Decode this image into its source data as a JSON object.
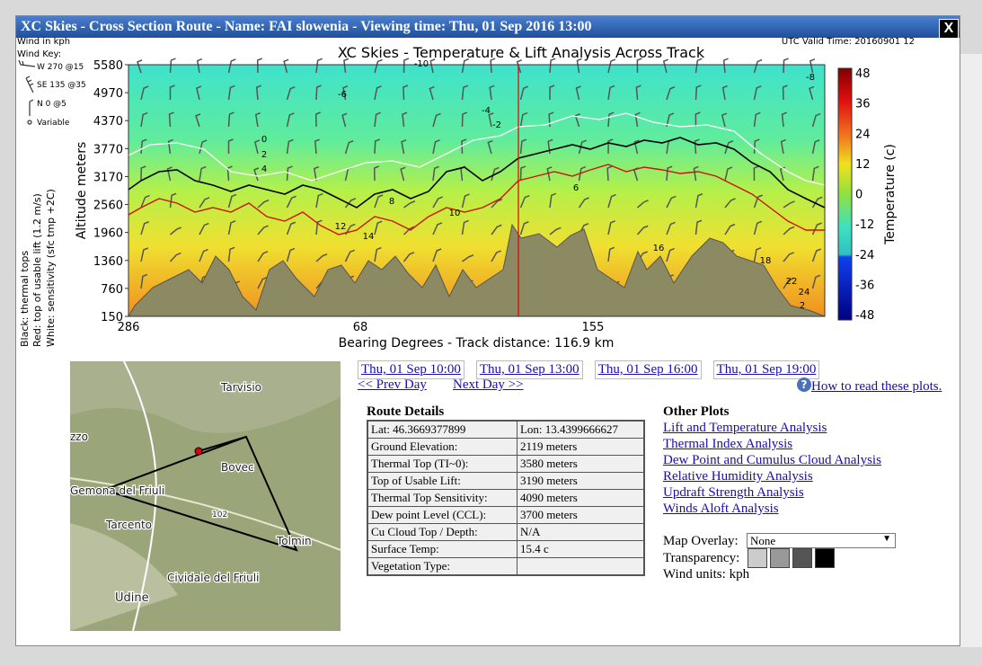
{
  "window": {
    "title": "XC Skies - Cross Section Route - Name: FAI slowenia - Viewing time: Thu, 01 Sep 2016 13:00",
    "close": "X"
  },
  "plot": {
    "title": "XC Skies - Temperature & Lift Analysis Across Track",
    "valid_time": "UTC Valid Time: 20160901 12",
    "y_label": "Altitude meters",
    "x_label": "Bearing Degrees - Track distance: 116.9 km",
    "y_ticks": [
      5580,
      4970,
      4370,
      3770,
      3170,
      2560,
      1960,
      1360,
      760,
      150
    ],
    "x_ticks": [
      286,
      68,
      155
    ],
    "colorbar_label": "Temperature (c)",
    "colorbar_ticks": [
      48,
      36,
      24,
      12,
      0,
      -12,
      -24,
      -36,
      -48
    ],
    "wind_key": {
      "units": "Wind in kph",
      "title": "Wind Key:",
      "entries": [
        "W 270 @15",
        "SE 135 @35",
        "N 0 @5",
        "Variable"
      ]
    },
    "legend": [
      "Black: thermal tops",
      "Red: top of usable lift (1.2 m/s)",
      "White: sensitivity (sfc tmp +2C)"
    ],
    "contour_labels": [
      -10,
      -8,
      -6,
      -4,
      -2,
      0,
      2,
      4,
      6,
      8,
      10,
      12,
      14,
      16,
      18,
      22,
      24,
      2
    ]
  },
  "map": {
    "places": [
      "Tarvisio",
      "Bovec",
      "Gemona del Friuli",
      "Tarcento",
      "Tolmin",
      "Cividale del Friuli",
      "Udine",
      "102",
      "zzo"
    ]
  },
  "time_links": [
    "Thu, 01 Sep 10:00",
    "Thu, 01 Sep 13:00",
    "Thu, 01 Sep 16:00",
    "Thu, 01 Sep 19:00"
  ],
  "prev_day": "<< Prev Day",
  "next_day": "Next Day >>",
  "help": "How to read these plots.",
  "route_details": {
    "title": "Route Details",
    "rows": [
      [
        "Lat: 46.3669377899",
        "Lon: 13.4399666627"
      ],
      [
        "Ground Elevation:",
        "2119 meters"
      ],
      [
        "Thermal Top (TI~0):",
        "3580 meters"
      ],
      [
        "Top of Usable Lift:",
        "3190 meters"
      ],
      [
        "Thermal Top Sensitivity:",
        "4090 meters"
      ],
      [
        "Dew point Level (CCL):",
        "3700 meters"
      ],
      [
        "Cu Cloud Top / Depth:",
        "N/A"
      ],
      [
        "Surface Temp:",
        "15.4 c"
      ],
      [
        "Vegetation Type:",
        ""
      ]
    ]
  },
  "other_plots": {
    "title": "Other Plots",
    "links": [
      "Lift and Temperature Analysis",
      "Thermal Index Analysis",
      "Dew Point and Cumulus Cloud Analysis",
      "Relative Humidity Analysis",
      "Updraft Strength Analysis",
      "Winds Aloft Analysis"
    ]
  },
  "controls": {
    "overlay_label": "Map Overlay:",
    "overlay_value": "None",
    "transparency_label": "Transparency:",
    "wind_units": "Wind units: kph"
  }
}
